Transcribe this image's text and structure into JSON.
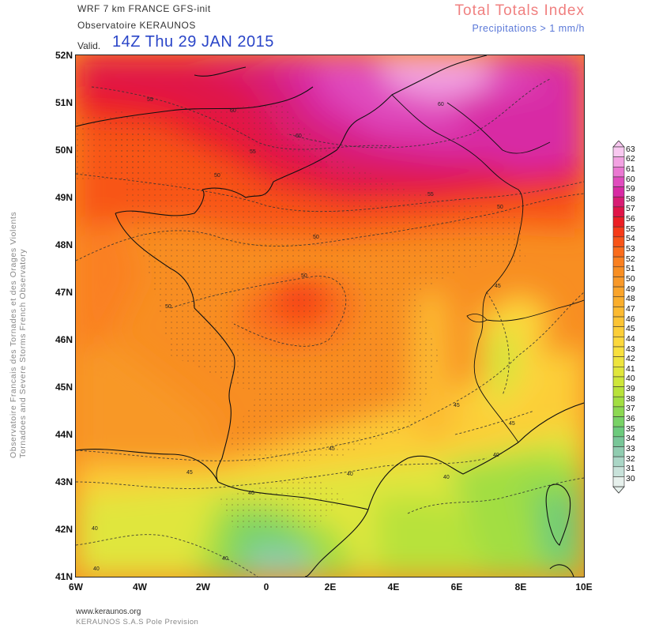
{
  "header": {
    "model": "WRF 7 km FRANCE  GFS-init",
    "org": "Observatoire KERAUNOS",
    "valid_label": "Valid.",
    "valid_time": "14Z Thu 29 JAN 2015",
    "index_title": "Total Totals Index",
    "precip_note": "Precipitations > 1 mm/h"
  },
  "side_text": {
    "line1": "Observatoire Francais des Tornades et des Orages Violents",
    "line2": "Tornadoes and Severe Storms French Observatory"
  },
  "axes": {
    "lat_labels": [
      "52N",
      "51N",
      "50N",
      "49N",
      "48N",
      "47N",
      "46N",
      "45N",
      "44N",
      "43N",
      "42N",
      "41N"
    ],
    "lon_labels": [
      "6W",
      "4W",
      "2W",
      "0",
      "2E",
      "4E",
      "6E",
      "8E",
      "10E"
    ]
  },
  "contour_labels": [
    "55",
    "60",
    "55",
    "50",
    "60",
    "60",
    "55",
    "50",
    "50",
    "50",
    "50",
    "45",
    "45",
    "45",
    "45",
    "45",
    "40",
    "40",
    "40",
    "40",
    "40",
    "40",
    "40"
  ],
  "legend": {
    "values": [
      "63",
      "62",
      "61",
      "60",
      "59",
      "58",
      "57",
      "56",
      "55",
      "54",
      "53",
      "52",
      "51",
      "50",
      "49",
      "48",
      "47",
      "46",
      "45",
      "44",
      "43",
      "42",
      "41",
      "40",
      "39",
      "38",
      "37",
      "36",
      "35",
      "34",
      "33",
      "32",
      "31",
      "30"
    ],
    "colors": [
      "#f8c8f0",
      "#f2a2e2",
      "#ea78d2",
      "#e04cbe",
      "#d82aa4",
      "#d81c74",
      "#e01448",
      "#ec1e24",
      "#f63a18",
      "#f85418",
      "#fa6c1c",
      "#fa8020",
      "#f88e22",
      "#f89828",
      "#faa42a",
      "#faae2c",
      "#fcba30",
      "#fcc434",
      "#fcce38",
      "#fcd83c",
      "#f8e03e",
      "#eee43e",
      "#e0e63c",
      "#cee63a",
      "#b8e23a",
      "#a2de42",
      "#8cd852",
      "#78d266",
      "#6cca7c",
      "#78c698",
      "#90ccb0",
      "#aad6c6",
      "#c8e2da",
      "#e6f0ec"
    ]
  },
  "footer": {
    "url": "www.keraunos.org",
    "company": "KERAUNOS S.A.S Pole Prevision"
  }
}
